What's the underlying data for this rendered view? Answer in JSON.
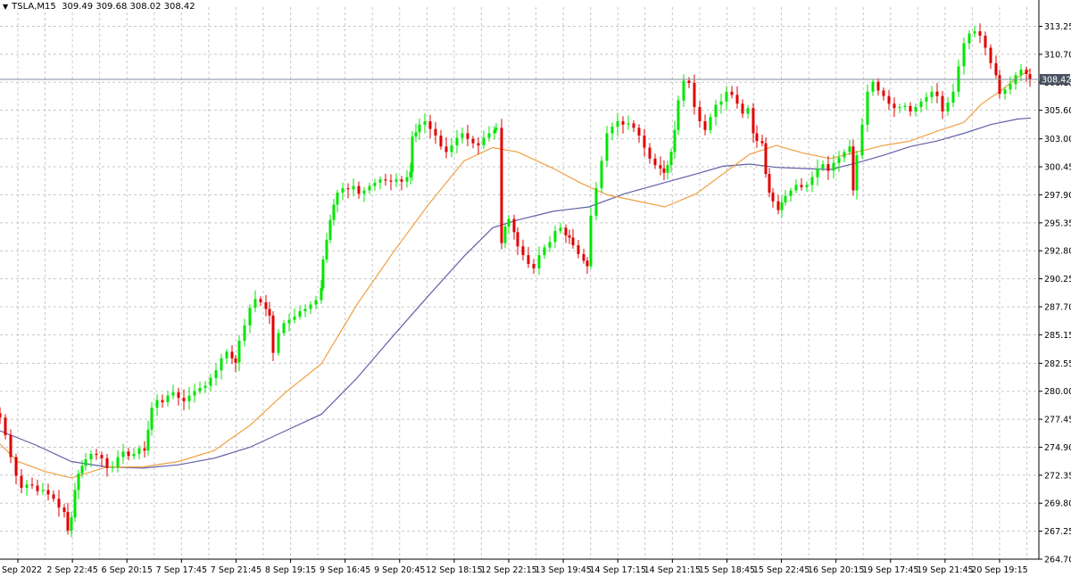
{
  "header": {
    "dropdown_icon": "triangle-down-icon",
    "symbol": "TSLA,M15",
    "ohlc": "309.49 309.68 308.02 308.42"
  },
  "colors": {
    "bull": "#00e600",
    "bear": "#e00000",
    "ma_fast": "#f0a040",
    "ma_slow": "#6060a8",
    "grid": "#c8c8c8",
    "price_line": "#7f8c9c",
    "price_tag_bg": "#4a5260"
  },
  "chart_data": {
    "type": "candlestick",
    "grid": true,
    "ylim": [
      264.7,
      315.0
    ],
    "y_ticks": [
      "313.25",
      "310.70",
      "308.15",
      "305.60",
      "303.00",
      "300.45",
      "297.90",
      "295.35",
      "292.80",
      "290.25",
      "287.70",
      "285.15",
      "282.55",
      "280.00",
      "277.45",
      "274.90",
      "272.35",
      "269.80",
      "267.25",
      "264.70"
    ],
    "x_ticks": [
      "2 Sep 2022",
      "2 Sep 22:45",
      "6 Sep 20:15",
      "7 Sep 17:45",
      "7 Sep 21:45",
      "8 Sep 19:15",
      "9 Sep 16:45",
      "9 Sep 20:45",
      "12 Sep 18:15",
      "12 Sep 22:15",
      "13 Sep 19:45",
      "14 Sep 17:15",
      "14 Sep 21:15",
      "15 Sep 18:45",
      "15 Sep 22:45",
      "16 Sep 20:15",
      "19 Sep 17:45",
      "19 Sep 21:45",
      "20 Sep 19:15"
    ],
    "current_price": "308.42",
    "close_path": [
      [
        0,
        277.6
      ],
      [
        6,
        276.0
      ],
      [
        12,
        274.0
      ],
      [
        18,
        272.3
      ],
      [
        24,
        271.2
      ],
      [
        30,
        271.5
      ],
      [
        36,
        271.4
      ],
      [
        42,
        270.9
      ],
      [
        48,
        271.0
      ],
      [
        54,
        270.6
      ],
      [
        60,
        270.2
      ],
      [
        66,
        269.4
      ],
      [
        72,
        269.0
      ],
      [
        76,
        267.3
      ],
      [
        80,
        268.5
      ],
      [
        84,
        271.0
      ],
      [
        88,
        272.5
      ],
      [
        92,
        273.2
      ],
      [
        96,
        273.8
      ],
      [
        102,
        274.3
      ],
      [
        108,
        274.2
      ],
      [
        114,
        273.9
      ],
      [
        120,
        273.0
      ],
      [
        126,
        273.1
      ],
      [
        132,
        274.0
      ],
      [
        138,
        274.5
      ],
      [
        144,
        274.1
      ],
      [
        150,
        274.3
      ],
      [
        156,
        274.8
      ],
      [
        162,
        274.6
      ],
      [
        166,
        276.5
      ],
      [
        170,
        278.5
      ],
      [
        176,
        279.2
      ],
      [
        182,
        279.0
      ],
      [
        188,
        279.6
      ],
      [
        194,
        279.9
      ],
      [
        200,
        279.4
      ],
      [
        206,
        279.1
      ],
      [
        212,
        279.6
      ],
      [
        218,
        280.0
      ],
      [
        224,
        280.3
      ],
      [
        230,
        280.5
      ],
      [
        236,
        281.2
      ],
      [
        242,
        281.9
      ],
      [
        248,
        283.0
      ],
      [
        254,
        283.6
      ],
      [
        260,
        283.0
      ],
      [
        264,
        282.6
      ],
      [
        268,
        284.6
      ],
      [
        274,
        286.0
      ],
      [
        280,
        287.6
      ],
      [
        286,
        288.4
      ],
      [
        292,
        288.1
      ],
      [
        298,
        287.5
      ],
      [
        302,
        286.9
      ],
      [
        306,
        283.5
      ],
      [
        312,
        285.3
      ],
      [
        318,
        286.2
      ],
      [
        324,
        286.5
      ],
      [
        330,
        286.8
      ],
      [
        336,
        287.3
      ],
      [
        342,
        287.5
      ],
      [
        348,
        287.9
      ],
      [
        354,
        288.3
      ],
      [
        360,
        289.4
      ],
      [
        362,
        292.0
      ],
      [
        366,
        293.8
      ],
      [
        370,
        295.6
      ],
      [
        374,
        297.0
      ],
      [
        378,
        298.1
      ],
      [
        384,
        298.5
      ],
      [
        390,
        298.4
      ],
      [
        396,
        298.7
      ],
      [
        402,
        298.0
      ],
      [
        408,
        298.3
      ],
      [
        414,
        298.7
      ],
      [
        420,
        299.0
      ],
      [
        426,
        299.3
      ],
      [
        432,
        299.2
      ],
      [
        438,
        299.1
      ],
      [
        444,
        299.3
      ],
      [
        450,
        299.1
      ],
      [
        456,
        299.5
      ],
      [
        460,
        300.0
      ],
      [
        462,
        303.2
      ],
      [
        466,
        303.6
      ],
      [
        470,
        304.3
      ],
      [
        476,
        304.6
      ],
      [
        482,
        303.9
      ],
      [
        488,
        303.3
      ],
      [
        494,
        302.3
      ],
      [
        500,
        301.8
      ],
      [
        506,
        302.4
      ],
      [
        512,
        303.1
      ],
      [
        518,
        303.5
      ],
      [
        524,
        303.0
      ],
      [
        530,
        302.6
      ],
      [
        536,
        302.4
      ],
      [
        542,
        303.1
      ],
      [
        548,
        303.5
      ],
      [
        554,
        303.8
      ],
      [
        556,
        304.0
      ],
      [
        562,
        293.5
      ],
      [
        566,
        295.0
      ],
      [
        570,
        295.7
      ],
      [
        576,
        294.5
      ],
      [
        580,
        293.2
      ],
      [
        586,
        292.4
      ],
      [
        592,
        291.6
      ],
      [
        598,
        291.2
      ],
      [
        604,
        292.4
      ],
      [
        610,
        293.1
      ],
      [
        616,
        293.6
      ],
      [
        622,
        294.6
      ],
      [
        628,
        294.9
      ],
      [
        634,
        294.2
      ],
      [
        638,
        294.0
      ],
      [
        642,
        293.3
      ],
      [
        648,
        292.5
      ],
      [
        654,
        291.9
      ],
      [
        658,
        291.4
      ],
      [
        662,
        296.0
      ],
      [
        668,
        298.5
      ],
      [
        674,
        301.0
      ],
      [
        680,
        303.5
      ],
      [
        686,
        304.1
      ],
      [
        692,
        304.6
      ],
      [
        698,
        304.3
      ],
      [
        704,
        304.4
      ],
      [
        710,
        304.0
      ],
      [
        716,
        303.3
      ],
      [
        722,
        302.2
      ],
      [
        728,
        301.2
      ],
      [
        734,
        300.6
      ],
      [
        740,
        300.3
      ],
      [
        744,
        299.9
      ],
      [
        748,
        300.6
      ],
      [
        752,
        301.8
      ],
      [
        756,
        303.8
      ],
      [
        760,
        306.5
      ],
      [
        766,
        308.3
      ],
      [
        772,
        308.1
      ],
      [
        778,
        305.9
      ],
      [
        784,
        304.6
      ],
      [
        790,
        303.8
      ],
      [
        796,
        305.0
      ],
      [
        802,
        306.1
      ],
      [
        808,
        306.4
      ],
      [
        814,
        307.3
      ],
      [
        820,
        307.0
      ],
      [
        826,
        306.2
      ],
      [
        832,
        305.3
      ],
      [
        838,
        305.8
      ],
      [
        844,
        303.5
      ],
      [
        848,
        302.8
      ],
      [
        854,
        302.6
      ],
      [
        858,
        299.8
      ],
      [
        862,
        298.1
      ],
      [
        866,
        297.3
      ],
      [
        872,
        296.5
      ],
      [
        876,
        297.2
      ],
      [
        880,
        297.8
      ],
      [
        886,
        298.3
      ],
      [
        892,
        298.8
      ],
      [
        898,
        298.6
      ],
      [
        904,
        298.8
      ],
      [
        910,
        299.5
      ],
      [
        916,
        300.3
      ],
      [
        922,
        300.7
      ],
      [
        928,
        300.1
      ],
      [
        934,
        300.8
      ],
      [
        940,
        301.3
      ],
      [
        946,
        301.8
      ],
      [
        952,
        302.3
      ],
      [
        956,
        298.3
      ],
      [
        960,
        301.5
      ],
      [
        966,
        304.3
      ],
      [
        972,
        307.3
      ],
      [
        978,
        308.2
      ],
      [
        984,
        307.4
      ],
      [
        990,
        306.9
      ],
      [
        996,
        306.2
      ],
      [
        1002,
        305.8
      ],
      [
        1008,
        305.9
      ],
      [
        1014,
        306.0
      ],
      [
        1020,
        305.5
      ],
      [
        1026,
        305.9
      ],
      [
        1032,
        306.4
      ],
      [
        1038,
        306.8
      ],
      [
        1044,
        307.3
      ],
      [
        1050,
        306.9
      ],
      [
        1056,
        305.5
      ],
      [
        1062,
        306.3
      ],
      [
        1068,
        307.3
      ],
      [
        1074,
        309.6
      ],
      [
        1080,
        311.7
      ],
      [
        1086,
        312.6
      ],
      [
        1092,
        312.8
      ],
      [
        1098,
        312.4
      ],
      [
        1104,
        311.3
      ],
      [
        1110,
        309.9
      ],
      [
        1116,
        308.8
      ],
      [
        1120,
        307.1
      ],
      [
        1126,
        307.5
      ],
      [
        1132,
        308.0
      ],
      [
        1138,
        308.8
      ],
      [
        1144,
        309.3
      ],
      [
        1150,
        308.9
      ],
      [
        1154,
        308.42
      ]
    ],
    "ma_fast_path": [
      [
        0,
        275.2
      ],
      [
        20,
        273.6
      ],
      [
        50,
        272.7
      ],
      [
        80,
        272.1
      ],
      [
        120,
        273.1
      ],
      [
        160,
        273.1
      ],
      [
        200,
        273.6
      ],
      [
        240,
        274.6
      ],
      [
        280,
        276.9
      ],
      [
        320,
        279.9
      ],
      [
        360,
        282.5
      ],
      [
        400,
        287.9
      ],
      [
        440,
        292.6
      ],
      [
        480,
        297.0
      ],
      [
        520,
        301.0
      ],
      [
        552,
        302.2
      ],
      [
        580,
        301.8
      ],
      [
        620,
        300.3
      ],
      [
        650,
        299.0
      ],
      [
        680,
        297.9
      ],
      [
        710,
        297.4
      ],
      [
        745,
        296.8
      ],
      [
        780,
        298.0
      ],
      [
        810,
        299.8
      ],
      [
        840,
        301.6
      ],
      [
        870,
        302.4
      ],
      [
        900,
        301.7
      ],
      [
        930,
        301.2
      ],
      [
        960,
        301.8
      ],
      [
        990,
        302.4
      ],
      [
        1020,
        302.8
      ],
      [
        1050,
        303.7
      ],
      [
        1080,
        304.5
      ],
      [
        1100,
        306.2
      ],
      [
        1120,
        307.3
      ],
      [
        1140,
        308.6
      ],
      [
        1155,
        309.3
      ]
    ],
    "ma_slow_path": [
      [
        0,
        276.4
      ],
      [
        40,
        275.1
      ],
      [
        80,
        273.6
      ],
      [
        120,
        273.1
      ],
      [
        160,
        273.0
      ],
      [
        200,
        273.3
      ],
      [
        240,
        273.9
      ],
      [
        280,
        274.9
      ],
      [
        320,
        276.4
      ],
      [
        360,
        277.9
      ],
      [
        400,
        281.2
      ],
      [
        440,
        285.0
      ],
      [
        480,
        288.7
      ],
      [
        520,
        292.3
      ],
      [
        552,
        294.9
      ],
      [
        580,
        295.6
      ],
      [
        620,
        296.4
      ],
      [
        660,
        296.8
      ],
      [
        700,
        298.0
      ],
      [
        740,
        298.9
      ],
      [
        780,
        299.8
      ],
      [
        810,
        300.5
      ],
      [
        840,
        300.7
      ],
      [
        870,
        300.4
      ],
      [
        900,
        300.3
      ],
      [
        930,
        300.2
      ],
      [
        960,
        300.8
      ],
      [
        990,
        301.5
      ],
      [
        1020,
        302.3
      ],
      [
        1050,
        302.8
      ],
      [
        1080,
        303.5
      ],
      [
        1110,
        304.3
      ],
      [
        1140,
        304.8
      ],
      [
        1155,
        304.9
      ]
    ]
  }
}
